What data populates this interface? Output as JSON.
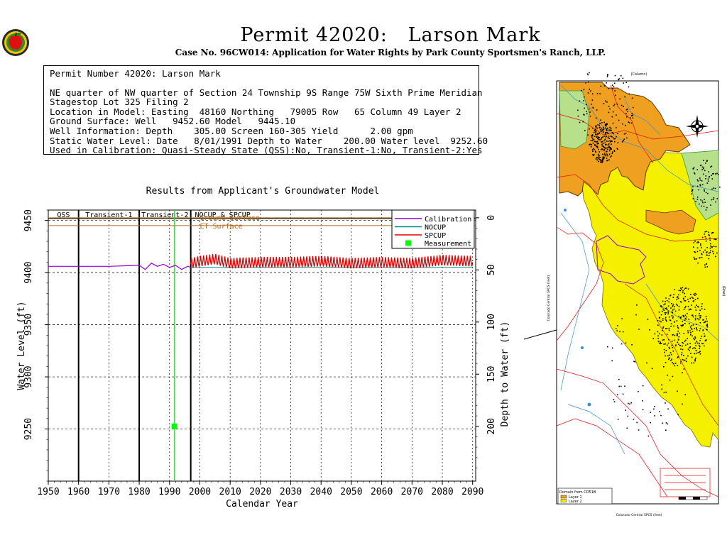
{
  "header": {
    "title": "Permit 42020:   Larson Mark",
    "subtitle": "Case No. 96CW014: Application for Water Rights by Park County Sportsmen's Ranch, LLP."
  },
  "info": {
    "lines": [
      "Permit Number 42020: Larson Mark",
      "NE quarter of NW quarter of Section 24 Township 9S Range 75W Sixth Prime Meridian",
      "Stagestop Lot 325 Filing 2",
      "Location in Model: Easting  48160 Northing   79005 Row   65 Column 49 Layer 2",
      "Ground Surface: Well   9452.60 Model   9445.10",
      "Well Information: Depth    305.00 Screen 160-305 Yield      2.00 gpm",
      "Static Water Level: Date   8/01/1991 Depth to Water    200.00 Water level  9252.60",
      "Used in Calibration: Quasi-Steady State (QSS):No, Transient-1:No, Transient-2:Yes"
    ]
  },
  "chart_data": {
    "type": "line",
    "title": "Results from Applicant's Groundwater Model",
    "xlabel": "Calendar Year",
    "ylabel": "Water Level (ft)",
    "y2label": "Depth to Water (ft)",
    "xlim": [
      1950,
      2091
    ],
    "ylim": [
      9200,
      9460
    ],
    "x_ticks": [
      1950,
      1960,
      1970,
      1980,
      1990,
      2000,
      2010,
      2020,
      2030,
      2040,
      2050,
      2060,
      2070,
      2080,
      2090
    ],
    "y_ticks": [
      9250,
      9300,
      9350,
      9400,
      9450
    ],
    "y2_ticks": [
      0,
      50,
      100,
      150,
      200
    ],
    "periods": [
      {
        "label": "QSS",
        "start": 1950,
        "end": 1960
      },
      {
        "label": "Transient-1",
        "start": 1960,
        "end": 1980
      },
      {
        "label": "Transient-2",
        "start": 1980,
        "end": 1997
      },
      {
        "label": "NOCUP & SPCUP",
        "start": 1997,
        "end": 2091
      }
    ],
    "reference_lines": [
      {
        "label": "Ground Surface",
        "y": 9452.6,
        "color": "#b06a1c"
      },
      {
        "label": "ET Surface",
        "y": 9445.1,
        "color": "#b06a1c"
      }
    ],
    "series": [
      {
        "name": "Calibration",
        "color": "#9400d3",
        "x": [
          1950,
          1960,
          1970,
          1980,
          1982,
          1984,
          1986,
          1988,
          1990,
          1992,
          1994,
          1996,
          1997
        ],
        "y": [
          9406,
          9406,
          9406,
          9407,
          9403,
          9409,
          9406,
          9408,
          9405,
          9407,
          9403,
          9406,
          9405
        ]
      },
      {
        "name": "NOCUP",
        "color": "#008b8b",
        "x": [
          1997,
          2000,
          2010,
          2020,
          2030,
          2040,
          2050,
          2060,
          2070,
          2080,
          2090
        ],
        "y": [
          9405,
          9405,
          9405,
          9405,
          9405,
          9405,
          9405,
          9405,
          9405,
          9405,
          9405
        ]
      },
      {
        "name": "SPCUP",
        "color": "#e00000",
        "x": [
          1997,
          2000,
          2005,
          2010,
          2020,
          2030,
          2040,
          2050,
          2060,
          2070,
          2080,
          2090
        ],
        "y": [
          9408,
          9410,
          9412,
          9408,
          9409,
          9409,
          9410,
          9408,
          9409,
          9408,
          9411,
          9410
        ]
      }
    ],
    "measurements": [
      {
        "name": "Measurement",
        "x": 1991.6,
        "y": 9252.6,
        "color": "#00ff00"
      }
    ],
    "measurement_line": {
      "x": 1991.6,
      "color": "#00ff00"
    },
    "grid": true,
    "legend_position": "top-right"
  },
  "map": {
    "top_label": "(Column)",
    "legend_title": "Domain from CD51B",
    "legend_items": [
      {
        "label": "Layer 1",
        "color": "#f0a020"
      },
      {
        "label": "Layer 2",
        "color": "#f5f000"
      }
    ],
    "x_axis_label": "Colorado Central SPCS (feet)",
    "y_axis_label": "Colorado Central SPCS (feet)",
    "right_axis_label": "(Row)"
  },
  "colors": {
    "calibration": "#9400d3",
    "nocup": "#008b8b",
    "spcup": "#e00000",
    "measurement": "#00ff00",
    "surface": "#b06a1c",
    "layer1": "#f0a020",
    "layer2": "#f5f000"
  }
}
